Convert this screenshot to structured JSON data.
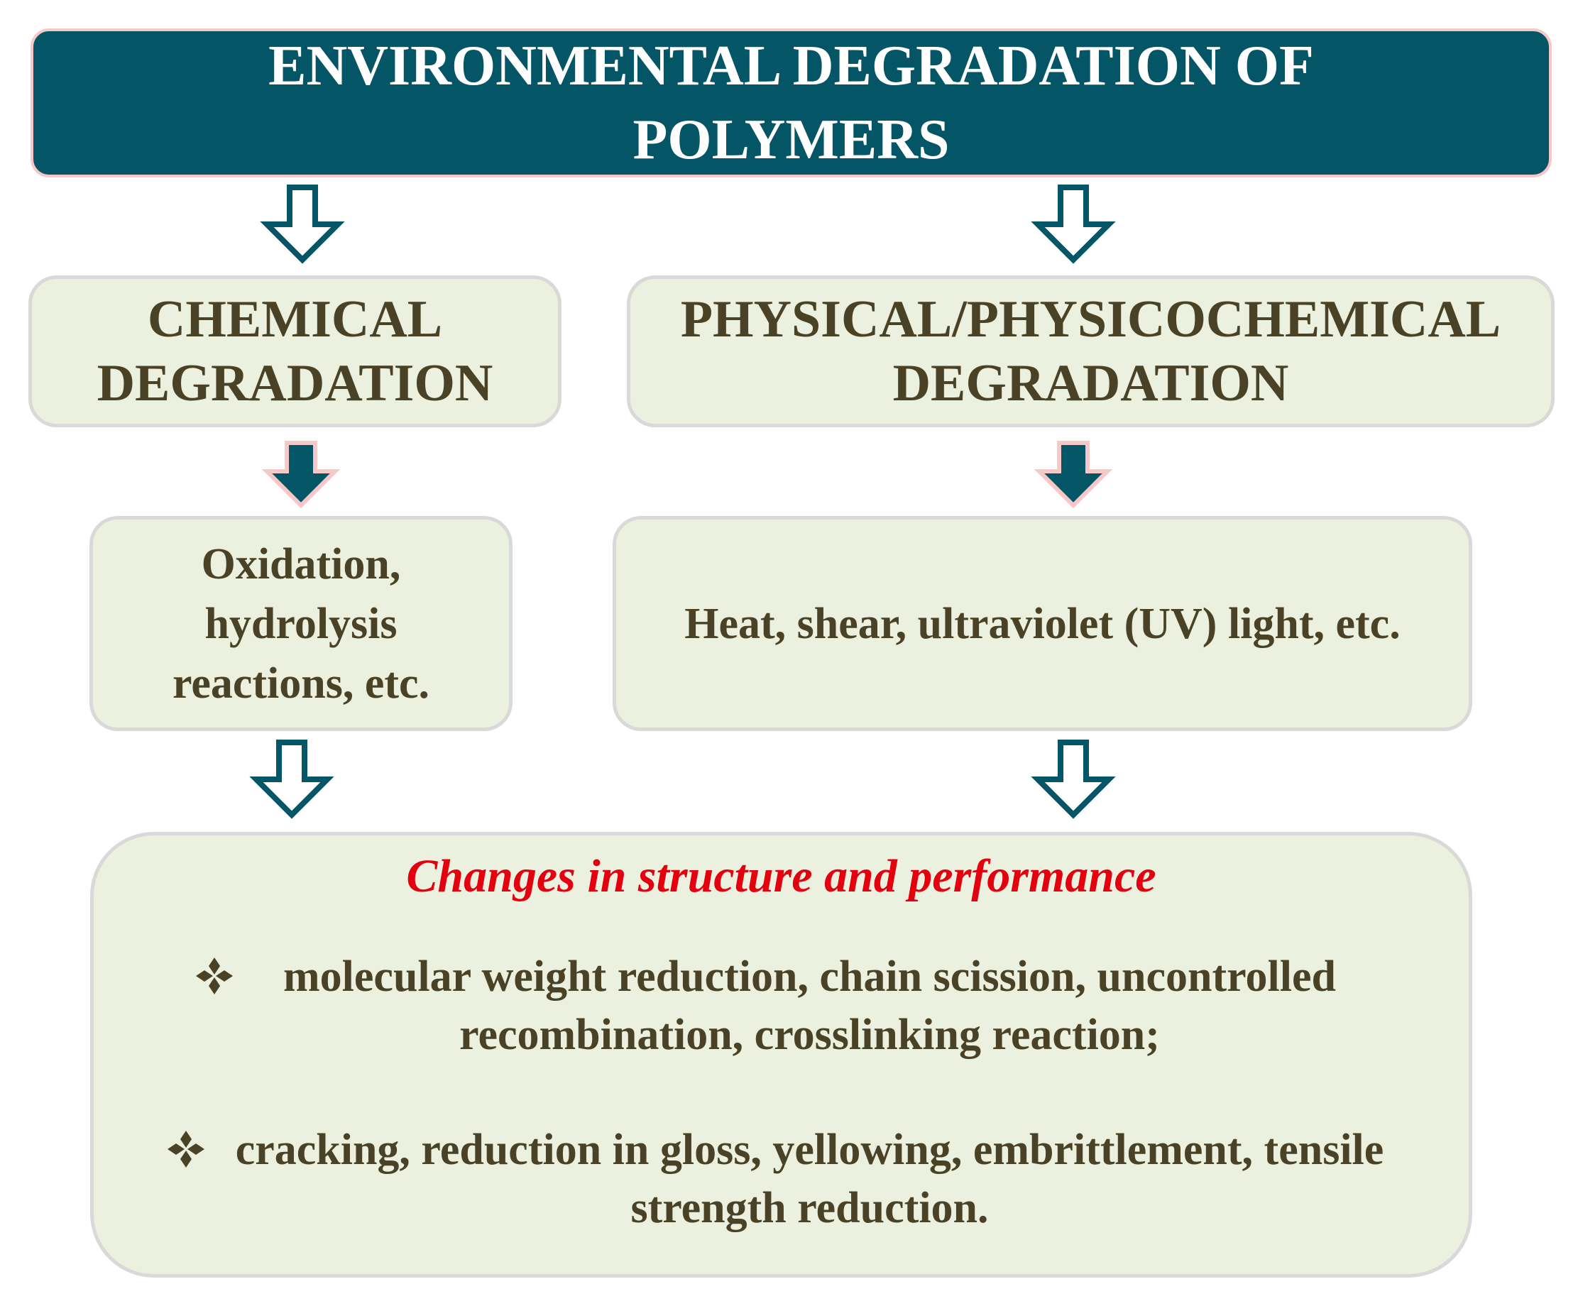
{
  "title": "ENVIRONMENTAL DEGRADATION OF POLYMERS",
  "branches": [
    {
      "label": "CHEMICAL DEGRADATION",
      "detail": "Oxidation, hydrolysis reactions, etc."
    },
    {
      "label": "PHYSICAL/PHYSICOCHEMICAL DEGRADATION",
      "detail": "Heat, shear, ultraviolet (UV) light, etc."
    }
  ],
  "outcome": {
    "heading": "Changes in structure and performance",
    "items": [
      "molecular weight reduction, chain scission, uncontrolled recombination, crosslinking reaction;",
      "cracking, reduction in gloss, yellowing, embrittlement, tensile strength reduction."
    ]
  }
}
